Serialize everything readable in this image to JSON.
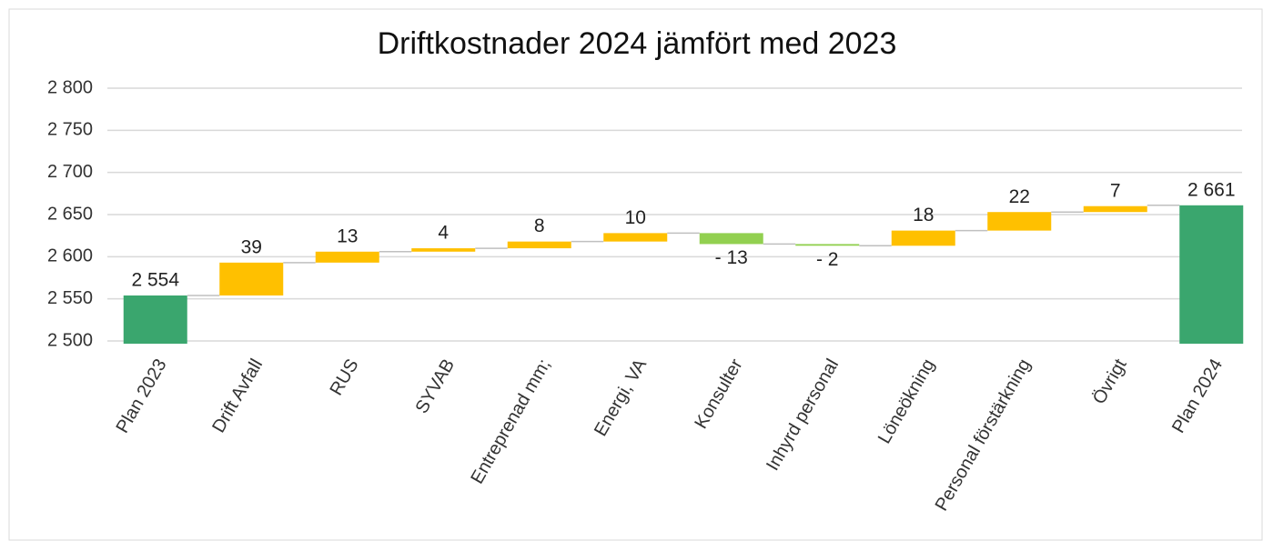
{
  "chart_data": {
    "type": "waterfall",
    "title": "Driftkostnader 2024 jämfört med 2023",
    "categories": [
      "Plan 2023",
      "Drift Avfall",
      "RUS",
      "SYVAB",
      "Entreprenad mm;",
      "Energi, VA",
      "Konsulter",
      "Inhyrd personal",
      "Löneökning",
      "Personal förstärkning",
      "Övrigt",
      "Plan 2024"
    ],
    "values": [
      2554,
      39,
      13,
      4,
      8,
      10,
      -13,
      -2,
      18,
      22,
      7,
      2661
    ],
    "value_labels": [
      "2 554",
      "39",
      "13",
      "4",
      "8",
      "10",
      "- 13",
      "- 2",
      "18",
      "22",
      "7",
      "2 661"
    ],
    "totals": [
      0,
      11
    ],
    "total_color": "#3aa66e",
    "increase_color": "#ffc000",
    "decrease_color": "#92d050",
    "ylim": [
      2500,
      2800
    ],
    "yticks": [
      {
        "value": 2500,
        "label": "2 500"
      },
      {
        "value": 2550,
        "label": "2 550"
      },
      {
        "value": 2600,
        "label": "2 600"
      },
      {
        "value": 2650,
        "label": "2 650"
      },
      {
        "value": 2700,
        "label": "2 700"
      },
      {
        "value": 2750,
        "label": "2 750"
      },
      {
        "value": 2800,
        "label": "2 800"
      }
    ],
    "grid": true
  }
}
